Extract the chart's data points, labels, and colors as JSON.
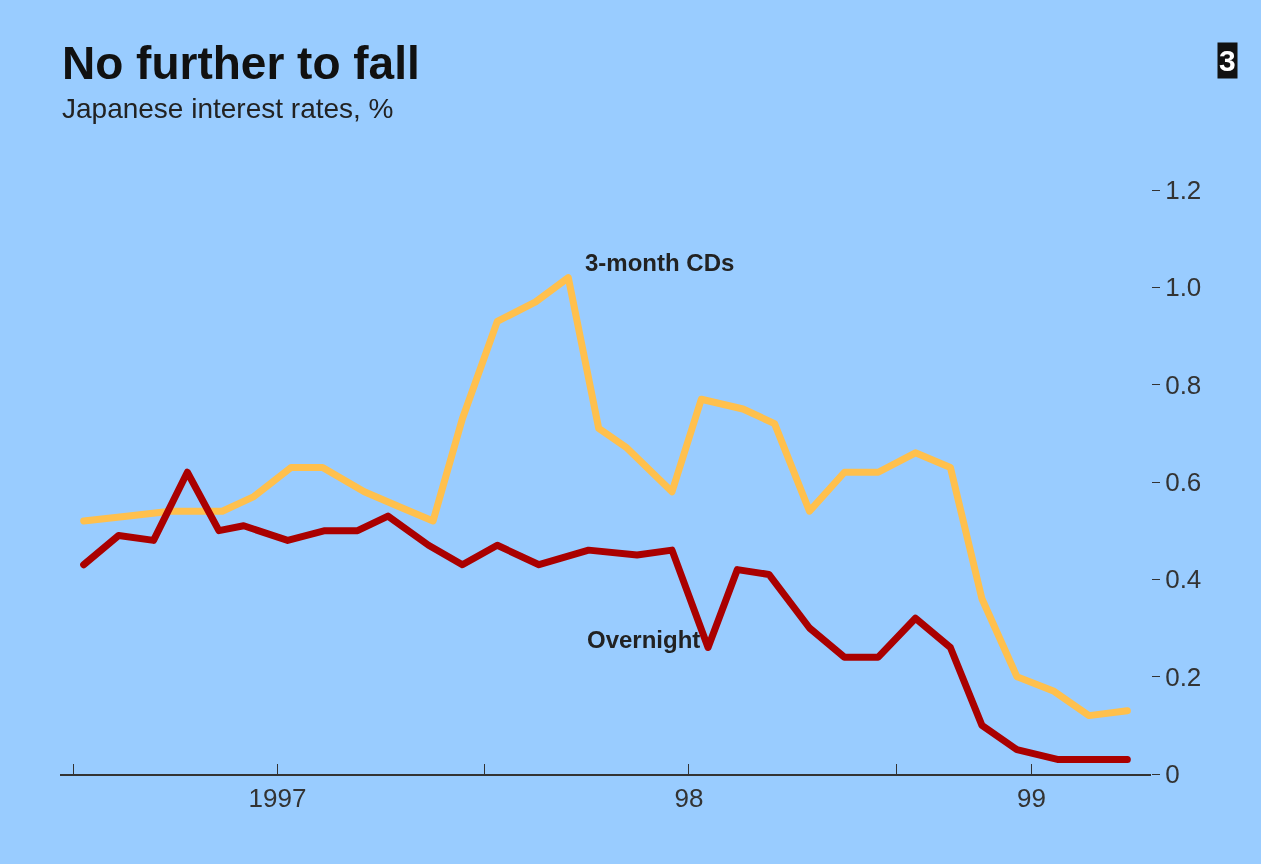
{
  "chart_data": {
    "type": "line",
    "title": "No further to fall",
    "subtitle": "Japanese interest rates, %",
    "annotations": [
      "3"
    ],
    "series": [
      {
        "name": "3-month CDs",
        "color": "#ffc04d",
        "x": [
          "1997-01-10",
          "1997-02-19",
          "1997-03-28",
          "1997-05-13",
          "1997-06-10",
          "1997-07-13",
          "1997-08-10",
          "1997-09-16",
          "1997-10-16",
          "1997-11-16",
          "1997-12-12",
          "1998-01-12",
          "1998-02-15",
          "1998-03-16",
          "1998-04-12",
          "1998-05-07",
          "1998-06-16",
          "1998-07-12",
          "1998-08-18",
          "1998-09-15",
          "1998-10-16",
          "1998-11-16",
          "1998-12-16",
          "1999-01-18",
          "1999-02-18",
          "1999-03-18",
          "1999-04-18",
          "1999-05-21",
          "1999-06-21",
          "1999-07-25"
        ],
        "values": [
          0.52,
          0.53,
          0.54,
          0.54,
          0.57,
          0.63,
          0.63,
          0.58,
          0.55,
          0.52,
          0.73,
          0.93,
          0.97,
          1.02,
          0.71,
          0.67,
          0.58,
          0.77,
          0.75,
          0.72,
          0.54,
          0.62,
          0.62,
          0.66,
          0.63,
          0.36,
          0.2,
          0.17,
          0.12,
          0.13
        ]
      },
      {
        "name": "Overnight",
        "color": "#aa0000",
        "x": [
          "1997-01-10",
          "1997-02-10",
          "1997-03-13",
          "1997-04-12",
          "1997-05-10",
          "1997-06-01",
          "1997-07-10",
          "1997-08-12",
          "1997-09-10",
          "1997-10-07",
          "1997-11-12",
          "1997-12-12",
          "1998-01-12",
          "1998-02-18",
          "1998-04-03",
          "1998-05-16",
          "1998-06-16",
          "1998-07-18",
          "1998-08-13",
          "1998-09-10",
          "1998-10-16",
          "1998-11-16",
          "1998-12-16",
          "1999-01-18",
          "1999-02-18",
          "1999-03-18",
          "1999-04-18",
          "1999-05-24",
          "1999-07-01",
          "1999-07-25"
        ],
        "values": [
          0.43,
          0.49,
          0.48,
          0.62,
          0.5,
          0.51,
          0.48,
          0.5,
          0.5,
          0.53,
          0.47,
          0.43,
          0.47,
          0.43,
          0.46,
          0.45,
          0.46,
          0.26,
          0.42,
          0.41,
          0.3,
          0.24,
          0.24,
          0.32,
          0.26,
          0.1,
          0.05,
          0.03,
          0.03,
          0.03
        ]
      }
    ],
    "xlim": [
      "1996-12-20",
      "1999-08-15"
    ],
    "xticks": [
      {
        "value": "1997-01-01",
        "label": null
      },
      {
        "value": "1997-07-01",
        "label": "1997"
      },
      {
        "value": "1998-01-01",
        "label": null
      },
      {
        "value": "1998-07-01",
        "label": "98"
      },
      {
        "value": "1999-01-01",
        "label": null
      },
      {
        "value": "1999-05-01",
        "label": "99"
      }
    ],
    "ylim": [
      0,
      1.2
    ],
    "yticks": [
      {
        "value": 0,
        "label": "0"
      },
      0.2,
      0.4,
      0.6,
      0.8,
      {
        "value": 1.0,
        "label": "1.0"
      },
      1.2
    ],
    "grid": false,
    "legend": false,
    "marker": "none",
    "line_style": "solid"
  }
}
